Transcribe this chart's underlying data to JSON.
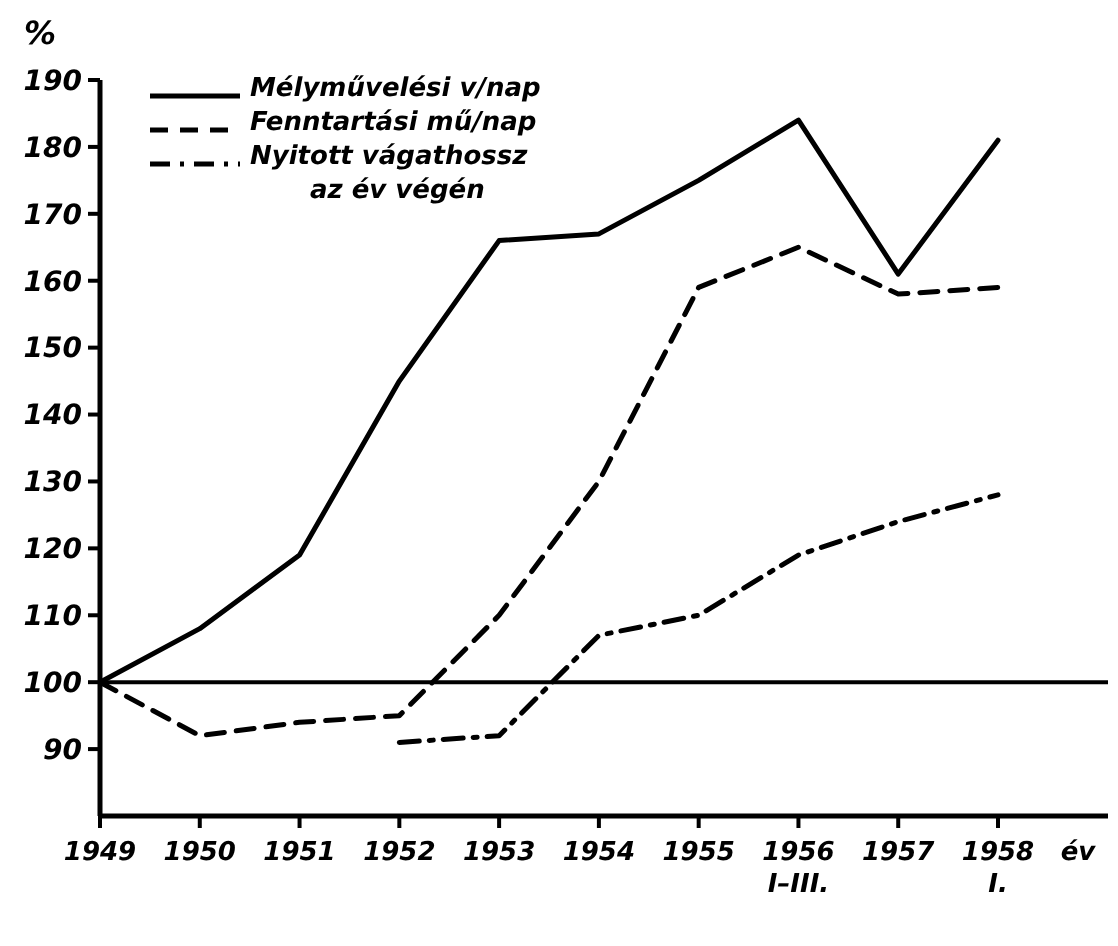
{
  "chart_data": {
    "type": "line",
    "ylabel": "%",
    "xlabel": "év",
    "categories": [
      "1949",
      "1950",
      "1951",
      "1952",
      "1953",
      "1954",
      "1955",
      "1956\nI–III.",
      "1957",
      "1958\nI."
    ],
    "series": [
      {
        "name": "Mélyművelési v/nap",
        "color": "#000000",
        "line_style": "solid",
        "values": [
          100,
          108,
          119,
          145,
          166,
          167,
          175,
          184,
          161,
          181
        ]
      },
      {
        "name": "Fenntartási mű/nap",
        "color": "#000000",
        "line_style": "dashed",
        "values": [
          100,
          92,
          94,
          95,
          110,
          130,
          159,
          165,
          158,
          159
        ]
      },
      {
        "name": "Nyitott vágathossz\naz év végén",
        "color": "#000000",
        "line_style": "dashdot",
        "values": [
          null,
          null,
          null,
          91,
          92,
          107,
          110,
          119,
          124,
          128
        ]
      }
    ],
    "ylim": [
      80,
      190
    ],
    "yticks": [
      90,
      100,
      110,
      120,
      130,
      140,
      150,
      160,
      170,
      180,
      190
    ],
    "ref_lines": [
      {
        "axis": "y",
        "value": 100,
        "color": "#000000"
      }
    ],
    "grid": false,
    "legend": "top left"
  }
}
